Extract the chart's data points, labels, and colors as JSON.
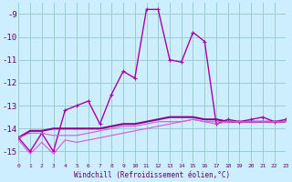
{
  "xlabel": "Windchill (Refroidissement éolien,°C)",
  "background_color": "#cceeff",
  "grid_color": "#99cccc",
  "x": [
    0,
    1,
    2,
    3,
    4,
    5,
    6,
    7,
    8,
    9,
    10,
    11,
    12,
    13,
    14,
    15,
    16,
    17,
    18,
    19,
    20,
    21,
    22,
    23
  ],
  "ylim": [
    -15.5,
    -8.5
  ],
  "yticks": [
    -15,
    -14,
    -13,
    -12,
    -11,
    -10,
    -9
  ],
  "xlim": [
    0,
    23
  ],
  "series": [
    {
      "y": [
        -14.4,
        -15.0,
        -14.2,
        -15.0,
        -13.2,
        -13.0,
        -12.8,
        -13.8,
        -12.5,
        -11.5,
        -11.8,
        -8.8,
        -8.8,
        -11.0,
        -11.1,
        -9.8,
        -10.2,
        -13.8,
        -13.6,
        -13.7,
        -13.6,
        -13.5,
        -13.7,
        -13.6
      ],
      "color": "#aa00aa",
      "linewidth": 1.0,
      "marker": "+",
      "markersize": 3
    },
    {
      "y": [
        -14.4,
        -14.1,
        -14.1,
        -14.0,
        -14.0,
        -14.0,
        -14.0,
        -14.0,
        -13.9,
        -13.8,
        -13.8,
        -13.7,
        -13.6,
        -13.5,
        -13.5,
        -13.5,
        -13.6,
        -13.6,
        -13.7,
        -13.7,
        -13.7,
        -13.7,
        -13.7,
        -13.7
      ],
      "color": "#880088",
      "linewidth": 1.5,
      "marker": null,
      "markersize": 0
    },
    {
      "y": [
        -14.4,
        -14.2,
        -14.2,
        -14.3,
        -14.3,
        -14.3,
        -14.2,
        -14.1,
        -14.0,
        -13.9,
        -13.9,
        -13.8,
        -13.7,
        -13.7,
        -13.7,
        -13.6,
        -13.7,
        -13.7,
        -13.7,
        -13.7,
        -13.7,
        -13.7,
        -13.7,
        -13.7
      ],
      "color": "#dd55dd",
      "linewidth": 0.8,
      "marker": null,
      "markersize": 0
    },
    {
      "y": [
        -14.5,
        -15.1,
        -14.6,
        -15.1,
        -14.5,
        -14.6,
        -14.5,
        -14.4,
        -14.3,
        -14.2,
        -14.1,
        -14.0,
        -13.9,
        -13.8,
        -13.7,
        -13.6,
        -13.7,
        -13.8,
        -13.7,
        -13.7,
        -13.7,
        -13.7,
        -13.7,
        -13.7
      ],
      "color": "#dd55dd",
      "linewidth": 0.8,
      "marker": null,
      "markersize": 0
    }
  ],
  "xtick_labels": [
    "0",
    "1",
    "2",
    "3",
    "4",
    "5",
    "6",
    "7",
    "8",
    "9",
    "10",
    "11",
    "12",
    "13",
    "14",
    "15",
    "16",
    "17",
    "18",
    "19",
    "20",
    "21",
    "22",
    "23"
  ],
  "tick_color": "#660066",
  "text_color": "#660066",
  "font_family": "monospace",
  "xlabel_fontsize": 5.5,
  "ytick_fontsize": 6.5,
  "xtick_fontsize": 4.5
}
